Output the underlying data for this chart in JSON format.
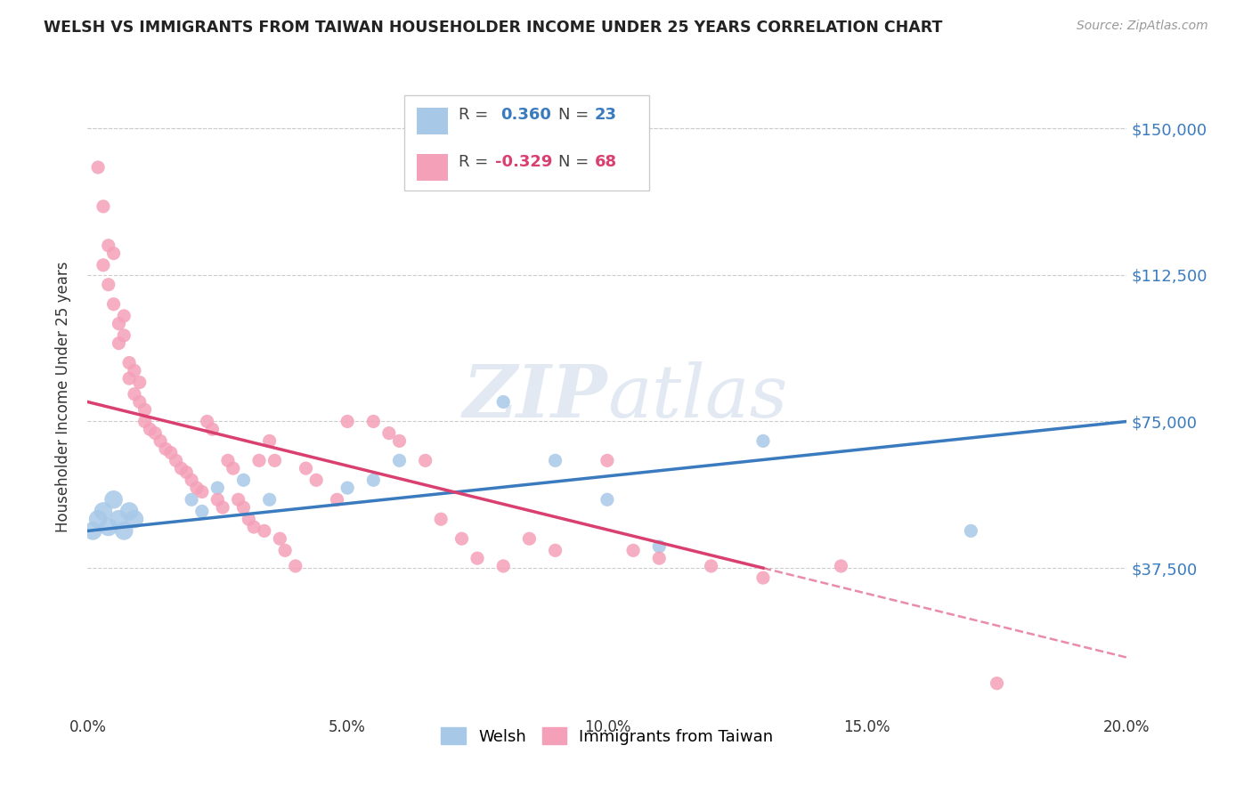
{
  "title": "WELSH VS IMMIGRANTS FROM TAIWAN HOUSEHOLDER INCOME UNDER 25 YEARS CORRELATION CHART",
  "source": "Source: ZipAtlas.com",
  "ylabel": "Householder Income Under 25 years",
  "x_min": 0.0,
  "x_max": 0.2,
  "y_min": 0,
  "y_max": 162500,
  "ytick_labels": [
    "$150,000",
    "$112,500",
    "$75,000",
    "$37,500"
  ],
  "ytick_values": [
    150000,
    112500,
    75000,
    37500
  ],
  "xtick_labels": [
    "0.0%",
    "5.0%",
    "10.0%",
    "15.0%",
    "20.0%"
  ],
  "xtick_values": [
    0.0,
    0.05,
    0.1,
    0.15,
    0.2
  ],
  "welsh_color": "#a8c8e8",
  "taiwan_color": "#f4a0b8",
  "welsh_line_color": "#3a7bbf",
  "taiwan_line_color": "#d94070",
  "welsh_R": 0.36,
  "welsh_N": 23,
  "taiwan_R": -0.329,
  "taiwan_N": 68,
  "legend_label_welsh": "Welsh",
  "legend_label_taiwan": "Immigrants from Taiwan",
  "background_color": "#ffffff",
  "watermark_zip": "ZIP",
  "watermark_atlas": "atlas",
  "welsh_scatter_x": [
    0.001,
    0.002,
    0.003,
    0.004,
    0.005,
    0.006,
    0.007,
    0.008,
    0.009,
    0.02,
    0.022,
    0.025,
    0.03,
    0.035,
    0.05,
    0.055,
    0.06,
    0.08,
    0.09,
    0.1,
    0.11,
    0.13,
    0.17
  ],
  "welsh_scatter_y": [
    47000,
    50000,
    52000,
    48000,
    55000,
    50000,
    47000,
    52000,
    50000,
    55000,
    52000,
    58000,
    60000,
    55000,
    58000,
    60000,
    65000,
    80000,
    65000,
    55000,
    43000,
    70000,
    47000
  ],
  "welsh_scatter_size_large": [
    0,
    1,
    2,
    3,
    4,
    5,
    6,
    7,
    8
  ],
  "taiwan_scatter_x": [
    0.002,
    0.003,
    0.003,
    0.004,
    0.004,
    0.005,
    0.005,
    0.006,
    0.006,
    0.007,
    0.007,
    0.008,
    0.008,
    0.009,
    0.009,
    0.01,
    0.01,
    0.011,
    0.011,
    0.012,
    0.013,
    0.014,
    0.015,
    0.016,
    0.017,
    0.018,
    0.019,
    0.02,
    0.021,
    0.022,
    0.023,
    0.024,
    0.025,
    0.026,
    0.027,
    0.028,
    0.029,
    0.03,
    0.031,
    0.032,
    0.033,
    0.034,
    0.035,
    0.036,
    0.037,
    0.038,
    0.04,
    0.042,
    0.044,
    0.048,
    0.05,
    0.055,
    0.058,
    0.06,
    0.065,
    0.068,
    0.072,
    0.075,
    0.08,
    0.085,
    0.09,
    0.1,
    0.105,
    0.11,
    0.12,
    0.13,
    0.145,
    0.175
  ],
  "taiwan_scatter_y": [
    140000,
    130000,
    115000,
    120000,
    110000,
    118000,
    105000,
    100000,
    95000,
    102000,
    97000,
    90000,
    86000,
    88000,
    82000,
    85000,
    80000,
    78000,
    75000,
    73000,
    72000,
    70000,
    68000,
    67000,
    65000,
    63000,
    62000,
    60000,
    58000,
    57000,
    75000,
    73000,
    55000,
    53000,
    65000,
    63000,
    55000,
    53000,
    50000,
    48000,
    65000,
    47000,
    70000,
    65000,
    45000,
    42000,
    38000,
    63000,
    60000,
    55000,
    75000,
    75000,
    72000,
    70000,
    65000,
    50000,
    45000,
    40000,
    38000,
    45000,
    42000,
    65000,
    42000,
    40000,
    38000,
    35000,
    38000,
    8000
  ],
  "taiwan_line_solid_end": 0.13,
  "welsh_line_start_x": 0.0,
  "welsh_line_end_x": 0.2
}
